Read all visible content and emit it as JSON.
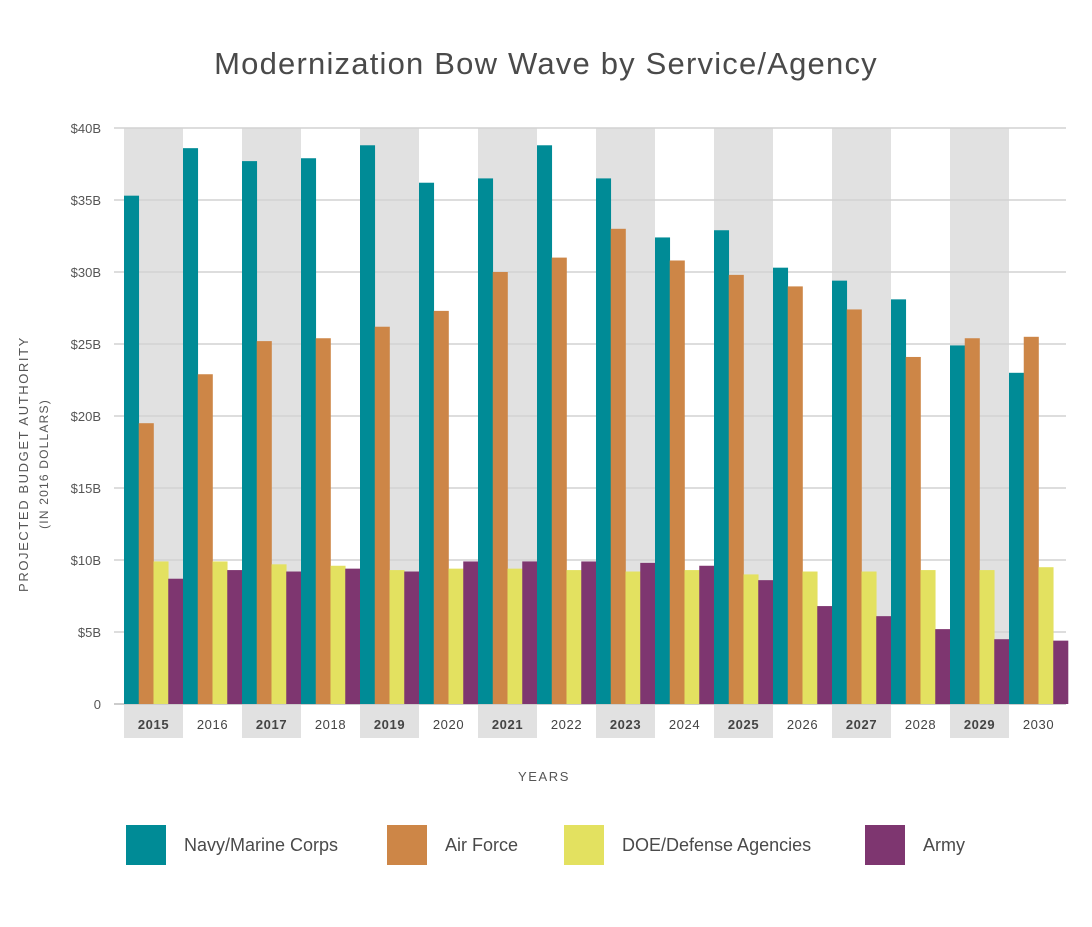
{
  "chart_data": {
    "type": "bar",
    "title": "Modernization Bow Wave by Service/Agency",
    "xlabel": "YEARS",
    "ylabel": "PROJECTED BUDGET AUTHORITY",
    "ylabel_sub": "(IN 2016 DOLLARS)",
    "ylim": [
      0,
      40
    ],
    "ytick_labels": [
      "0",
      "$5B",
      "$10B",
      "$15B",
      "$20B",
      "$25B",
      "$30B",
      "$35B",
      "$40B"
    ],
    "categories": [
      "2015",
      "2016",
      "2017",
      "2018",
      "2019",
      "2020",
      "2021",
      "2022",
      "2023",
      "2024",
      "2025",
      "2026",
      "2027",
      "2028",
      "2029",
      "2030"
    ],
    "highlighted_categories": [
      "2015",
      "2017",
      "2019",
      "2021",
      "2023",
      "2025",
      "2027",
      "2029"
    ],
    "grid": true,
    "legend_position": "bottom",
    "series": [
      {
        "name": "Navy/Marine Corps",
        "color": "#008b96",
        "values": [
          35.3,
          38.6,
          37.7,
          37.9,
          38.8,
          36.2,
          36.5,
          38.8,
          36.5,
          32.4,
          32.9,
          30.3,
          29.4,
          28.1,
          24.9,
          23.0
        ]
      },
      {
        "name": "Air Force",
        "color": "#cd8647",
        "values": [
          19.5,
          22.9,
          25.2,
          25.4,
          26.2,
          27.3,
          30.0,
          31.0,
          33.0,
          30.8,
          29.8,
          29.0,
          27.4,
          24.1,
          25.4,
          25.5
        ]
      },
      {
        "name": "DOE/Defense Agencies",
        "color": "#e3e160",
        "values": [
          9.9,
          9.9,
          9.7,
          9.6,
          9.3,
          9.4,
          9.4,
          9.3,
          9.2,
          9.3,
          9.0,
          9.2,
          9.2,
          9.3,
          9.3,
          9.5
        ]
      },
      {
        "name": "Army",
        "color": "#7e3670",
        "values": [
          8.7,
          9.3,
          9.2,
          9.4,
          9.2,
          9.9,
          9.9,
          9.9,
          9.8,
          9.6,
          8.6,
          6.8,
          6.1,
          5.2,
          4.5,
          4.4
        ]
      }
    ],
    "colors": {
      "highlight_band": "#e1e1e1",
      "gridline": "#d2d2d2",
      "axis": "#bbbbbb"
    }
  }
}
